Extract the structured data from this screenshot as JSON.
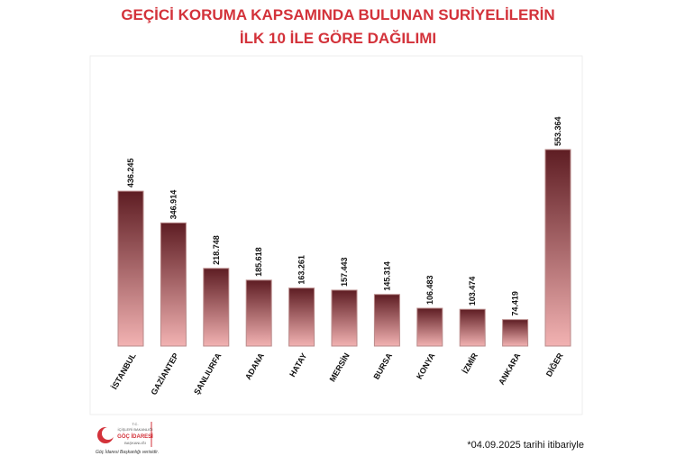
{
  "chart_data": {
    "type": "bar",
    "title": "GEÇİCİ KORUMA KAPSAMINDA BULUNAN SURİYELİLERİN",
    "subtitle": "İLK 10 İLE GÖRE DAĞILIMI",
    "categories": [
      "İSTANBUL",
      "GAZİANTEP",
      "ŞANLIURFA",
      "ADANA",
      "HATAY",
      "MERSİN",
      "BURSA",
      "KONYA",
      "İZMİR",
      "ANKARA",
      "DİĞER"
    ],
    "values": [
      436245,
      346914,
      218748,
      185618,
      163261,
      157443,
      145314,
      106483,
      103474,
      74419,
      553364
    ],
    "value_labels": [
      "436.245",
      "346.914",
      "218.748",
      "185.618",
      "163.261",
      "157.443",
      "145.314",
      "106.483",
      "103.474",
      "74.419",
      "553.364"
    ],
    "color": "#5e1d23",
    "annotation": "*04.09.2025 tarihi itibariyle"
  },
  "logo": {
    "line1": "T.C.",
    "line2": "İÇİŞLERİ BAKANLIĞI",
    "line3": "GÖÇ İDARESİ",
    "line4": "BAŞKANLIĞI",
    "source": "Göç İdaresi Başkanlığı verisidir."
  }
}
